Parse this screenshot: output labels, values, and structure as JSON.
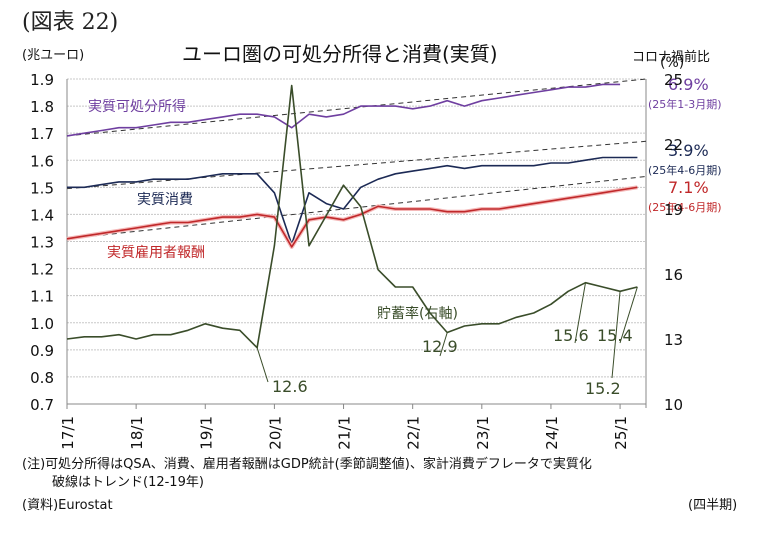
{
  "figure_label": "(図表 22)",
  "chart_data": {
    "type": "line",
    "title": "ユーロ圏の可処分所得と消費(実質)",
    "left_axis": {
      "unit_label": "(兆ユーロ)",
      "ylim": [
        0.7,
        1.9
      ],
      "ticks": [
        "0.7",
        "0.8",
        "0.9",
        "1.0",
        "1.1",
        "1.2",
        "1.3",
        "1.4",
        "1.5",
        "1.6",
        "1.7",
        "1.8",
        "1.9"
      ]
    },
    "right_axis": {
      "unit_label": "(%)",
      "ylim": [
        10,
        25
      ],
      "ticks": [
        "10",
        "13",
        "16",
        "19",
        "22",
        "25"
      ]
    },
    "x_tick_labels": [
      "17/1",
      "18/1",
      "19/1",
      "20/1",
      "21/1",
      "22/1",
      "23/1",
      "24/1",
      "25/1"
    ],
    "x_quarters": [
      "17Q1",
      "17Q2",
      "17Q3",
      "17Q4",
      "18Q1",
      "18Q2",
      "18Q3",
      "18Q4",
      "19Q1",
      "19Q2",
      "19Q3",
      "19Q4",
      "20Q1",
      "20Q2",
      "20Q3",
      "20Q4",
      "21Q1",
      "21Q2",
      "21Q3",
      "21Q4",
      "22Q1",
      "22Q2",
      "22Q3",
      "22Q4",
      "23Q1",
      "23Q2",
      "23Q3",
      "23Q4",
      "24Q1",
      "24Q2",
      "24Q3",
      "24Q4",
      "25Q1",
      "25Q2"
    ],
    "xlabel": "(四半期)",
    "grid": true,
    "series": [
      {
        "name": "実質可処分所得",
        "axis": "left",
        "color": "#6f3fa0",
        "values": [
          1.69,
          1.7,
          1.71,
          1.72,
          1.72,
          1.73,
          1.74,
          1.74,
          1.75,
          1.76,
          1.77,
          1.77,
          1.76,
          1.72,
          1.77,
          1.76,
          1.77,
          1.8,
          1.8,
          1.8,
          1.79,
          1.8,
          1.82,
          1.8,
          1.82,
          1.83,
          1.84,
          1.85,
          1.86,
          1.87,
          1.87,
          1.88,
          1.88,
          null
        ],
        "trend": {
          "start": 1.69,
          "end": 1.9
        }
      },
      {
        "name": "実質消費",
        "axis": "left",
        "color": "#1c2a55",
        "values": [
          1.5,
          1.5,
          1.51,
          1.52,
          1.52,
          1.53,
          1.53,
          1.53,
          1.54,
          1.55,
          1.55,
          1.55,
          1.48,
          1.29,
          1.48,
          1.44,
          1.42,
          1.5,
          1.53,
          1.55,
          1.56,
          1.57,
          1.58,
          1.57,
          1.58,
          1.58,
          1.58,
          1.58,
          1.59,
          1.59,
          1.6,
          1.61,
          1.61,
          1.61
        ],
        "trend": {
          "start": 1.495,
          "end": 1.67
        }
      },
      {
        "name": "実質雇用者報酬",
        "axis": "left",
        "color": "#c0282a",
        "values": [
          1.31,
          1.32,
          1.33,
          1.34,
          1.35,
          1.36,
          1.37,
          1.37,
          1.38,
          1.39,
          1.39,
          1.4,
          1.39,
          1.28,
          1.38,
          1.39,
          1.38,
          1.4,
          1.43,
          1.42,
          1.42,
          1.42,
          1.41,
          1.41,
          1.42,
          1.42,
          1.43,
          1.44,
          1.45,
          1.46,
          1.47,
          1.48,
          1.49,
          1.5
        ],
        "trend": {
          "start": 1.31,
          "end": 1.54
        }
      },
      {
        "name": "貯蓄率(右軸)",
        "axis": "right",
        "color": "#3a4d2a",
        "values": [
          13.0,
          13.1,
          13.1,
          13.2,
          13.0,
          13.2,
          13.2,
          13.4,
          13.7,
          13.5,
          13.4,
          12.6,
          17.3,
          24.7,
          17.3,
          18.7,
          20.1,
          19.1,
          16.2,
          15.4,
          15.4,
          14.2,
          13.3,
          13.6,
          13.7,
          13.7,
          14.0,
          14.2,
          14.6,
          15.2,
          15.6,
          15.4,
          15.2,
          15.4
        ]
      }
    ],
    "series_labels": {
      "income": "実質可処分所得",
      "consumption": "実質消費",
      "compensation": "実質雇用者報酬",
      "saving": "貯蓄率(右軸)"
    },
    "point_annotations": [
      "12.6",
      "12.9",
      "15.6",
      "15.4",
      "15.2"
    ],
    "side_annotations": {
      "heading": "コロナ禍前比",
      "income": {
        "value": "6.9%",
        "period": "(25年1-3月期)"
      },
      "consumption": {
        "value": "3.9%",
        "period": "(25年4-6月期)"
      },
      "compensation": {
        "value": "7.1%",
        "period": "(25年4-6月期)"
      }
    }
  },
  "notes": {
    "line1": "(注)可処分所得はQSA、消費、雇用者報酬はGDP統計(季節調整値)、家計消費デフレータで実質化",
    "line2": "破線はトレンド(12-19年)",
    "source": "(資料)Eurostat"
  },
  "colors": {
    "income": "#6f3fa0",
    "consumption": "#1c2a55",
    "compensation": "#c0282a",
    "saving": "#3a4d2a",
    "grid": "#bdbdbd"
  }
}
